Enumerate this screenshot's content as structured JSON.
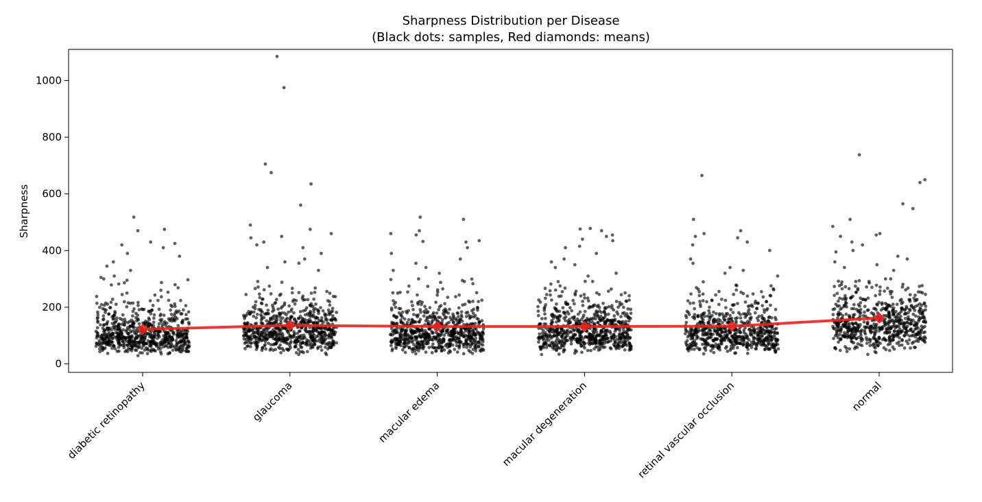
{
  "chart_data": {
    "type": "scatter",
    "title": "Sharpness Distribution per Disease",
    "subtitle": "(Black dots: samples, Red diamonds: means)",
    "xlabel": "",
    "ylabel": "Sharpness",
    "categories": [
      "diabetic retinopathy",
      "glaucoma",
      "macular edema",
      "macular degeneration",
      "retinal vascular occlusion",
      "normal"
    ],
    "ylim": [
      -30,
      1110
    ],
    "yticks": [
      0,
      200,
      400,
      600,
      800,
      1000
    ],
    "grid": false,
    "series": [
      {
        "kind": "jitter-samples",
        "color": "#000000",
        "opacity": 0.6
      },
      {
        "kind": "means-line",
        "color": "#e8251d",
        "marker": "diamond",
        "values": [
          122,
          136,
          132,
          132,
          133,
          162
        ]
      }
    ],
    "samples": [
      {
        "category": "diabetic retinopathy",
        "count": 700,
        "median": 105,
        "high_points": [
          518,
          475,
          470,
          430,
          425,
          420,
          410,
          390,
          380,
          360,
          345,
          330,
          310,
          305,
          300,
          295
        ]
      },
      {
        "category": "glaucoma",
        "count": 700,
        "median": 115,
        "high_points": [
          1085,
          975,
          705,
          675,
          635,
          560,
          490,
          475,
          460,
          450,
          445,
          430,
          420,
          410,
          390,
          370,
          360,
          355,
          340,
          330
        ]
      },
      {
        "category": "macular edema",
        "count": 700,
        "median": 110,
        "high_points": [
          518,
          510,
          470,
          460,
          455,
          435,
          432,
          430,
          410,
          390,
          370,
          355,
          340,
          330,
          320,
          300
        ]
      },
      {
        "category": "macular degeneration",
        "count": 700,
        "median": 115,
        "high_points": [
          478,
          476,
          470,
          455,
          450,
          440,
          435,
          415,
          410,
          390,
          370,
          360,
          350,
          340,
          320,
          310
        ]
      },
      {
        "category": "retinal vascular occlusion",
        "count": 650,
        "median": 110,
        "high_points": [
          665,
          510,
          470,
          460,
          450,
          445,
          430,
          420,
          400,
          370,
          355,
          340,
          330,
          320,
          310
        ]
      },
      {
        "category": "normal",
        "count": 650,
        "median": 140,
        "high_points": [
          738,
          650,
          640,
          565,
          548,
          510,
          485,
          460,
          455,
          450,
          430,
          420,
          400,
          395,
          380,
          370,
          360,
          350,
          340,
          330
        ]
      }
    ]
  }
}
